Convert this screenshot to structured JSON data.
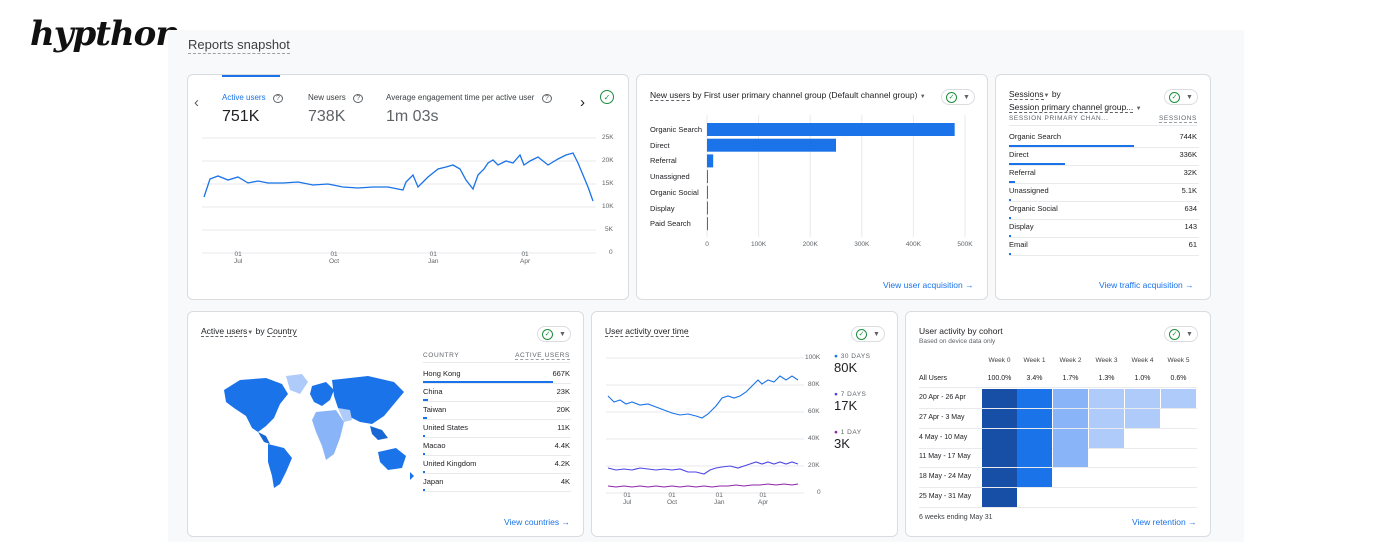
{
  "brand": {
    "logo": "hypthon"
  },
  "page": {
    "title": "Reports snapshot"
  },
  "overview": {
    "metrics": [
      {
        "label": "Active users",
        "value": "751K",
        "help_icon": "help-circle-icon"
      },
      {
        "label": "New users",
        "value": "738K",
        "help_icon": "help-circle-icon"
      },
      {
        "label": "Average engagement time per active user",
        "value": "1m 03s",
        "help_icon": "help-circle-icon"
      }
    ],
    "y_ticks": [
      "25K",
      "20K",
      "15K",
      "10K",
      "5K",
      "0"
    ],
    "x_ticks": [
      {
        "day": "01",
        "month": "Jul"
      },
      {
        "day": "01",
        "month": "Oct"
      },
      {
        "day": "01",
        "month": "Jan"
      },
      {
        "day": "01",
        "month": "Apr"
      }
    ],
    "nav_prev": "‹",
    "nav_next": "›"
  },
  "acquisition": {
    "title_pre": "New users",
    "title_rest": " by First user primary channel group (Default channel group)",
    "chart_data": {
      "type": "bar",
      "orientation": "horizontal",
      "categories": [
        "Organic Search",
        "Direct",
        "Referral",
        "Unassigned",
        "Organic Social",
        "Display",
        "Paid Search"
      ],
      "values": [
        480000,
        250000,
        12000,
        800,
        500,
        300,
        200
      ],
      "xlim": [
        0,
        500000
      ],
      "x_ticks": [
        "0",
        "100K",
        "200K",
        "300K",
        "400K",
        "500K"
      ],
      "bar_color": "#1a73e8"
    },
    "link": "View user acquisition"
  },
  "sessions": {
    "title_line1": "Sessions",
    "title_by": " by",
    "title_line2": "Session primary channel group...",
    "col_left": "SESSION PRIMARY CHAN...",
    "col_right": "SESSIONS",
    "rows": [
      {
        "label": "Organic Search",
        "value": "744K",
        "share": 1.0
      },
      {
        "label": "Direct",
        "value": "336K",
        "share": 0.45
      },
      {
        "label": "Referral",
        "value": "32K",
        "share": 0.05
      },
      {
        "label": "Unassigned",
        "value": "5.1K",
        "share": 0.01
      },
      {
        "label": "Organic Social",
        "value": "634",
        "share": 0.002
      },
      {
        "label": "Display",
        "value": "143",
        "share": 0.001
      },
      {
        "label": "Email",
        "value": "61",
        "share": 0.0005
      }
    ],
    "link": "View traffic acquisition"
  },
  "countries": {
    "title_pre": "Active users",
    "title_by": " by ",
    "title_dim": "Country",
    "col_left": "COUNTRY",
    "col_right": "ACTIVE USERS",
    "rows": [
      {
        "label": "Hong Kong",
        "value": "667K",
        "share": 1.0
      },
      {
        "label": "China",
        "value": "23K",
        "share": 0.035
      },
      {
        "label": "Taiwan",
        "value": "20K",
        "share": 0.03
      },
      {
        "label": "United States",
        "value": "11K",
        "share": 0.017
      },
      {
        "label": "Macao",
        "value": "4.4K",
        "share": 0.007
      },
      {
        "label": "United Kingdom",
        "value": "4.2K",
        "share": 0.006
      },
      {
        "label": "Japan",
        "value": "4K",
        "share": 0.006
      }
    ],
    "link": "View countries"
  },
  "activity": {
    "title": "User activity over time",
    "y_ticks": [
      "100K",
      "80K",
      "60K",
      "40K",
      "20K",
      "0"
    ],
    "x_ticks": [
      {
        "day": "01",
        "month": "Jul"
      },
      {
        "day": "01",
        "month": "Oct"
      },
      {
        "day": "01",
        "month": "Jan"
      },
      {
        "day": "01",
        "month": "Apr"
      }
    ],
    "legend": [
      {
        "label": "30 DAYS",
        "value": "80K",
        "color": "#1a73e8"
      },
      {
        "label": "7 DAYS",
        "value": "17K",
        "color": "#4f46e5"
      },
      {
        "label": "1 DAY",
        "value": "3K",
        "color": "#8e24aa"
      }
    ]
  },
  "cohort": {
    "title": "User activity by cohort",
    "subtitle": "Based on device data only",
    "weeks": [
      "Week 0",
      "Week 1",
      "Week 2",
      "Week 3",
      "Week 4",
      "Week 5"
    ],
    "all_users": {
      "label": "All Users",
      "values": [
        "100.0%",
        "3.4%",
        "1.7%",
        "1.3%",
        "1.0%",
        "0.6%"
      ]
    },
    "rows": [
      {
        "label": "20 Apr - 26 Apr",
        "cells": [
          4,
          3,
          2,
          1,
          1,
          1
        ]
      },
      {
        "label": "27 Apr - 3 May",
        "cells": [
          4,
          3,
          2,
          1,
          1
        ]
      },
      {
        "label": "4 May - 10 May",
        "cells": [
          4,
          3,
          2,
          1
        ]
      },
      {
        "label": "11 May - 17 May",
        "cells": [
          4,
          3,
          2
        ]
      },
      {
        "label": "18 May - 24 May",
        "cells": [
          4,
          3
        ]
      },
      {
        "label": "25 May - 31 May",
        "cells": [
          4
        ]
      }
    ],
    "shades": {
      "1": "#aecbfa",
      "2": "#8ab4f8",
      "3": "#1a73e8",
      "4": "#174ea6"
    },
    "footer": "6 weeks ending May 31",
    "link": "View retention"
  }
}
